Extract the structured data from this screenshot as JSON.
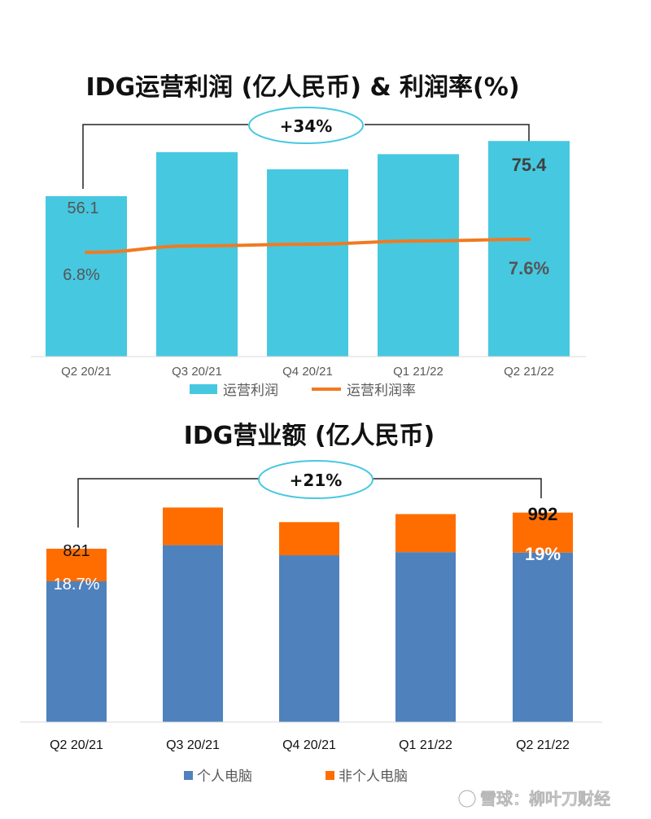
{
  "chart_data": [
    {
      "type": "bar",
      "title": "IDG运营利润 (亿人民币) & 利润率(%)",
      "categories": [
        "Q2 20/21",
        "Q3 20/21",
        "Q4 20/21",
        "Q1 21/22",
        "Q2 21/22"
      ],
      "series": [
        {
          "name": "运营利润",
          "type": "bar",
          "values": [
            56.1,
            71.5,
            65.5,
            70.8,
            75.4
          ],
          "color": "#46C8E0"
        },
        {
          "name": "运营利润率",
          "type": "line",
          "values": [
            6.8,
            7.2,
            7.3,
            7.5,
            7.6
          ],
          "color": "#F07A22"
        }
      ],
      "labels": {
        "first_value": "56.1",
        "last_value": "75.4",
        "first_margin": "6.8%",
        "last_margin": "7.6%"
      },
      "growth_callout": "+34%",
      "ylim": [
        0,
        82
      ],
      "legend_position": "bottom"
    },
    {
      "type": "bar",
      "stacked": true,
      "title": "IDG营业额 (亿人民币)",
      "categories": [
        "Q2 20/21",
        "Q3 20/21",
        "Q4 20/21",
        "Q1 21/22",
        "Q2 21/22"
      ],
      "series": [
        {
          "name": "个人电脑",
          "values": [
            667,
            838,
            790,
            805,
            803
          ],
          "color": "#4F81BD"
        },
        {
          "name": "非个人电脑",
          "values": [
            154,
            178,
            157,
            180,
            189
          ],
          "color": "#FF6D00"
        }
      ],
      "totals": [
        821,
        1016,
        947,
        985,
        992
      ],
      "labels": {
        "first_total": "821",
        "last_total": "992",
        "first_share": "18.7%",
        "last_share": "19%"
      },
      "growth_callout": "+21%",
      "ylim": [
        0,
        1060
      ],
      "legend_position": "bottom"
    }
  ],
  "watermark": "雪球：柳叶刀财经"
}
